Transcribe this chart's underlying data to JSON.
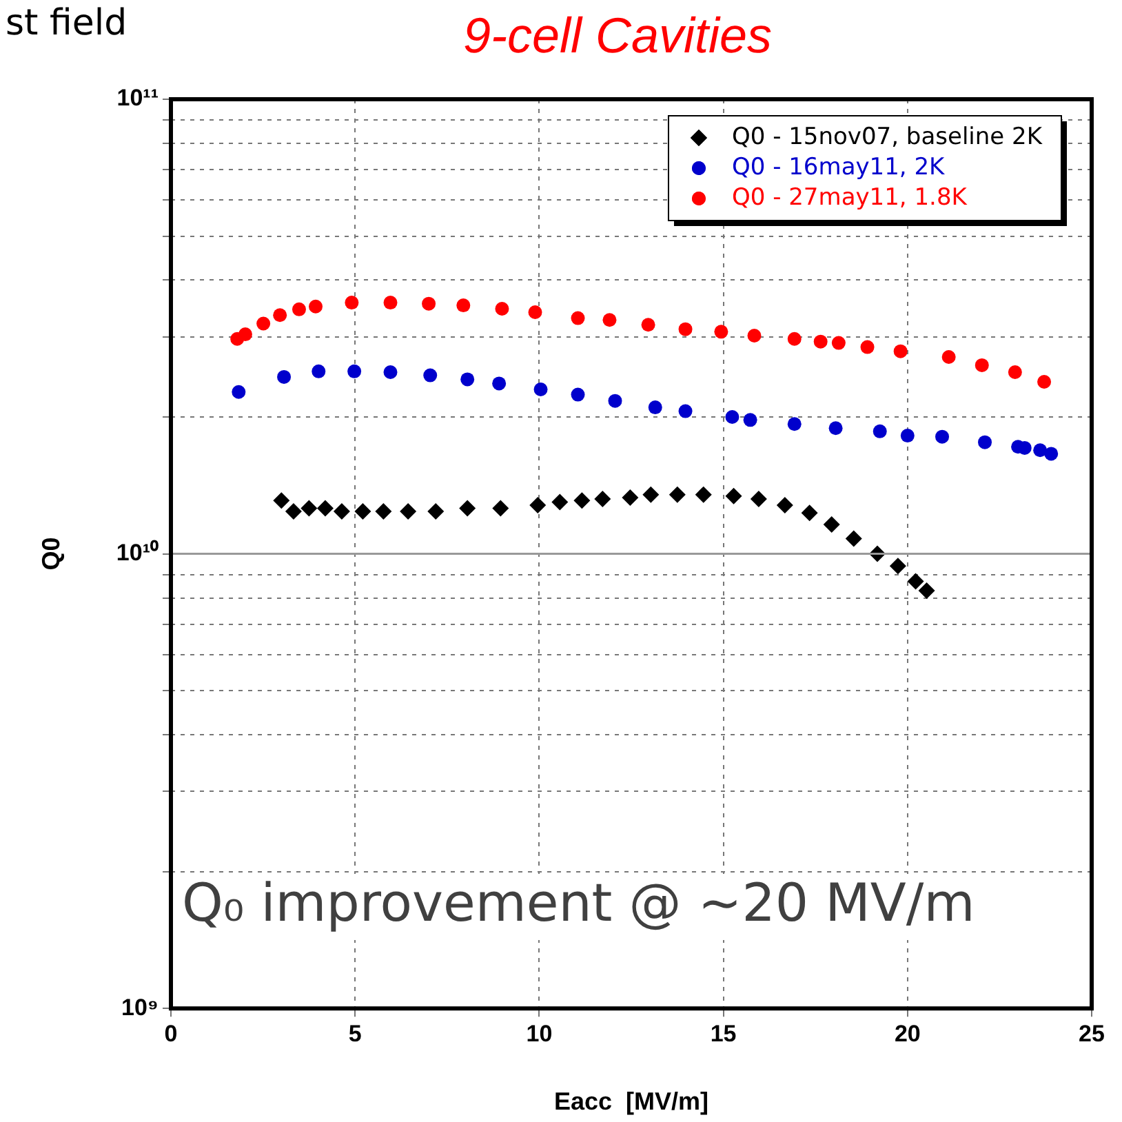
{
  "chart_data": {
    "type": "scatter",
    "title": "9-cell Cavities",
    "xlabel": "Eacc  [MV/m]",
    "ylabel": "Q0",
    "annotations": [
      "st field",
      "Q₀ improvement @ ~20 MV/m"
    ],
    "log": "y",
    "grid": true,
    "legend": "top right",
    "ref_lines": [
      {
        "axis": "y",
        "value": 10000000000.0,
        "color": "#999999"
      }
    ],
    "xlim": [
      0,
      25
    ],
    "xticks": [
      0,
      5,
      10,
      15,
      20,
      25
    ],
    "ylim": [
      1000000000.0,
      100000000000.0
    ],
    "yticks": [
      {
        "value": 1000000000.0,
        "label": "10⁹"
      },
      {
        "value": 2000000000.0,
        "label": null
      },
      {
        "value": 3000000000.0,
        "label": null
      },
      {
        "value": 4000000000.0,
        "label": null
      },
      {
        "value": 5000000000.0,
        "label": null
      },
      {
        "value": 6000000000.0,
        "label": null
      },
      {
        "value": 7000000000.0,
        "label": null
      },
      {
        "value": 8000000000.0,
        "label": null
      },
      {
        "value": 9000000000.0,
        "label": null
      },
      {
        "value": 10000000000.0,
        "label": "10¹⁰"
      },
      {
        "value": 20000000000.0,
        "label": null
      },
      {
        "value": 30000000000.0,
        "label": null
      },
      {
        "value": 40000000000.0,
        "label": null
      },
      {
        "value": 50000000000.0,
        "label": null
      },
      {
        "value": 60000000000.0,
        "label": null
      },
      {
        "value": 70000000000.0,
        "label": null
      },
      {
        "value": 80000000000.0,
        "label": null
      },
      {
        "value": 90000000000.0,
        "label": null
      },
      {
        "value": 100000000000.0,
        "label": "10¹¹"
      }
    ],
    "series": [
      {
        "name": "Q0 - 15nov07, baseline 2K",
        "color": "#000000",
        "marker": "diamond",
        "x": [
          3.0,
          3.33,
          3.75,
          4.19,
          4.64,
          5.21,
          5.77,
          6.44,
          7.19,
          8.05,
          8.95,
          9.96,
          10.56,
          11.16,
          11.72,
          12.47,
          13.03,
          13.75,
          14.46,
          15.28,
          15.96,
          16.67,
          17.34,
          17.94,
          18.54,
          19.18,
          19.74,
          20.22,
          20.52
        ],
        "values": [
          13100000000.0,
          12400000000.0,
          12600000000.0,
          12600000000.0,
          12400000000.0,
          12400000000.0,
          12400000000.0,
          12400000000.0,
          12400000000.0,
          12600000000.0,
          12600000000.0,
          12800000000.0,
          13000000000.0,
          13100000000.0,
          13200000000.0,
          13300000000.0,
          13500000000.0,
          13500000000.0,
          13500000000.0,
          13400000000.0,
          13200000000.0,
          12800000000.0,
          12300000000.0,
          11600000000.0,
          10800000000.0,
          10000000000.0,
          9400000000.0,
          8700000000.0,
          8300000000.0
        ]
      },
      {
        "name": "Q0 - 16may11, 2K",
        "color": "#0000cc",
        "marker": "circle",
        "x": [
          1.84,
          3.07,
          4.01,
          4.98,
          5.96,
          7.04,
          8.05,
          8.91,
          10.04,
          11.05,
          12.06,
          13.15,
          13.97,
          15.24,
          15.73,
          16.93,
          18.05,
          19.25,
          20.0,
          20.94,
          22.1,
          23.0,
          23.18,
          23.6,
          23.9
        ],
        "values": [
          22700000000.0,
          24500000000.0,
          25200000000.0,
          25200000000.0,
          25100000000.0,
          24700000000.0,
          24200000000.0,
          23700000000.0,
          23000000000.0,
          22400000000.0,
          21700000000.0,
          21000000000.0,
          20600000000.0,
          20000000000.0,
          19700000000.0,
          19300000000.0,
          18900000000.0,
          18600000000.0,
          18200000000.0,
          18100000000.0,
          17600000000.0,
          17200000000.0,
          17100000000.0,
          16900000000.0,
          16600000000.0
        ]
      },
      {
        "name": "Q0 - 27may11, 1.8K",
        "color": "#ff0000",
        "marker": "circle",
        "x": [
          1.8,
          2.02,
          2.51,
          2.96,
          3.48,
          3.93,
          4.91,
          5.96,
          7.0,
          7.94,
          8.99,
          9.89,
          11.05,
          11.91,
          12.96,
          13.97,
          14.94,
          15.84,
          16.93,
          17.64,
          18.13,
          18.91,
          19.81,
          21.12,
          22.02,
          22.92,
          23.71
        ],
        "values": [
          29700000000.0,
          30400000000.0,
          32100000000.0,
          33500000000.0,
          34500000000.0,
          35000000000.0,
          35700000000.0,
          35700000000.0,
          35500000000.0,
          35200000000.0,
          34600000000.0,
          34000000000.0,
          33000000000.0,
          32700000000.0,
          31900000000.0,
          31200000000.0,
          30800000000.0,
          30200000000.0,
          29700000000.0,
          29300000000.0,
          29100000000.0,
          28500000000.0,
          27900000000.0,
          27100000000.0,
          26000000000.0,
          25100000000.0,
          23900000000.0
        ]
      }
    ]
  }
}
